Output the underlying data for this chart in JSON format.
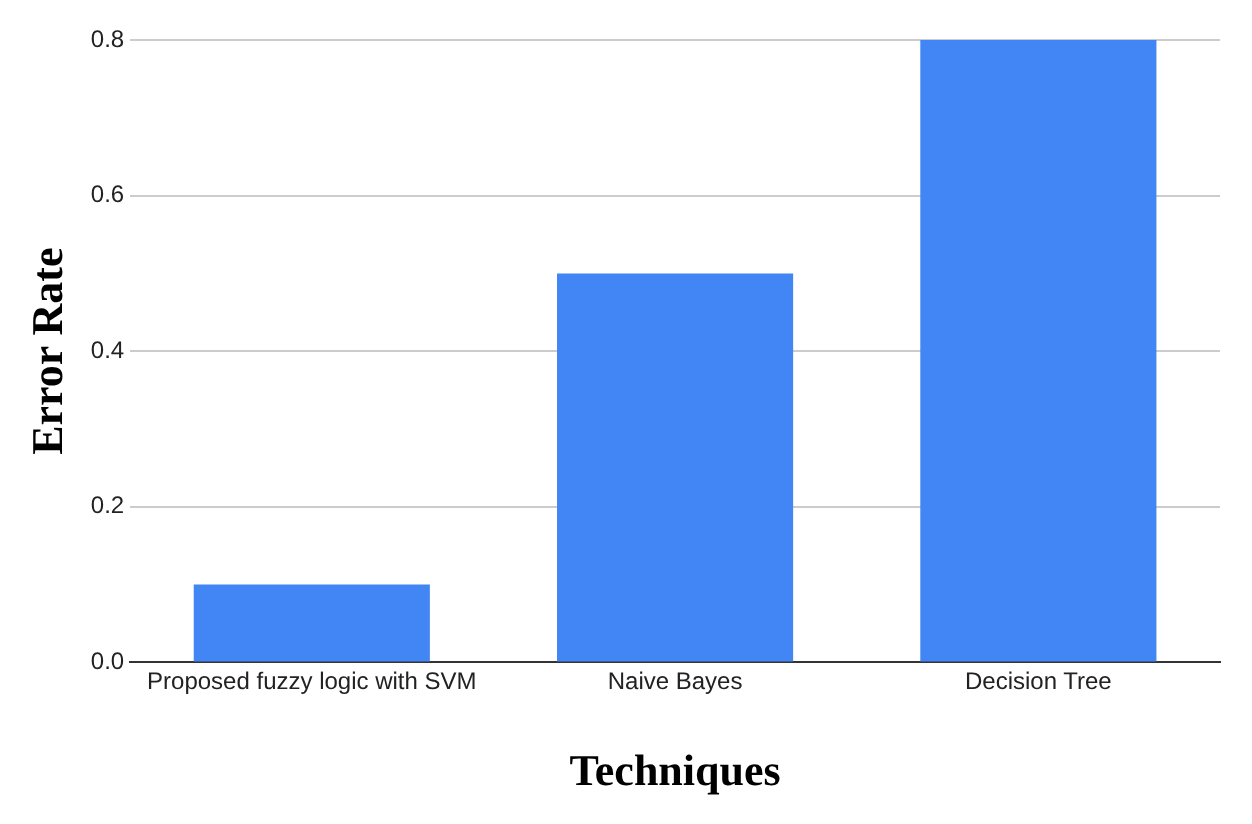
{
  "chart_data": {
    "type": "bar",
    "xlabel": "Techniques",
    "ylabel": "Error Rate",
    "categories": [
      "Proposed fuzzy logic with SVM",
      "Naive Bayes",
      "Decision Tree"
    ],
    "values": [
      0.1,
      0.5,
      0.8
    ],
    "color": "#4285f4",
    "ylim": [
      0,
      0.8
    ],
    "yticks": [
      {
        "value": 0,
        "label": "0.0"
      },
      0.2,
      0.4,
      0.6,
      0.8
    ],
    "grid": "y"
  }
}
